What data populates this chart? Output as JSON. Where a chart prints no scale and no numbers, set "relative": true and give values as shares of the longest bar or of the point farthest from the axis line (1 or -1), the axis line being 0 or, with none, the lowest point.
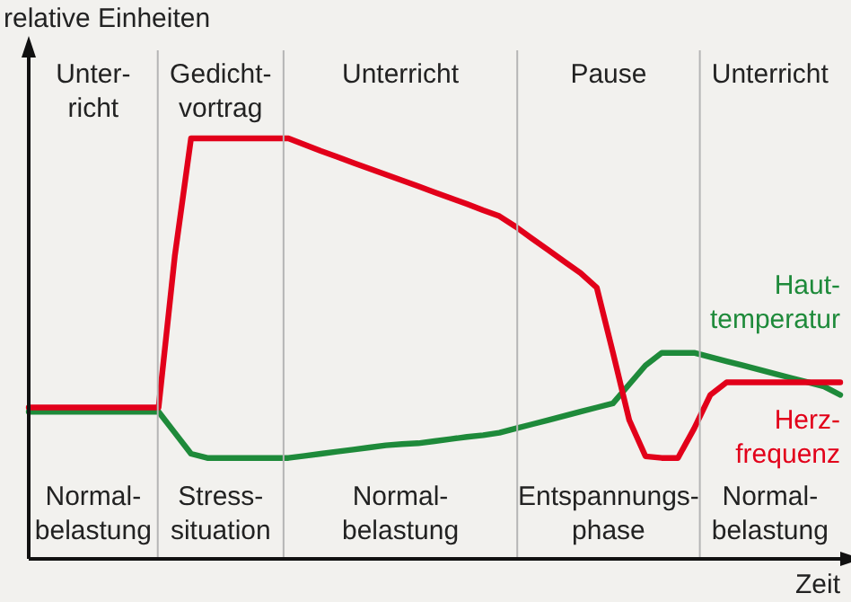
{
  "chart_data": {
    "type": "line",
    "relative": true,
    "ylabel": "relative Einheiten",
    "xlabel": "Zeit",
    "grid": false,
    "legend": false,
    "marker": "none",
    "line_style": "solid",
    "categories": [
      null,
      null,
      null,
      null,
      null,
      null,
      null,
      null,
      null,
      null,
      null,
      null,
      null,
      null,
      null,
      null,
      null,
      null,
      null,
      null,
      null,
      null,
      null,
      null,
      null,
      null,
      null,
      null,
      null,
      null,
      null,
      null,
      null,
      null,
      null,
      null,
      null,
      null,
      null,
      null,
      null,
      null,
      null,
      null,
      null,
      null,
      null,
      null,
      null,
      null,
      null
    ],
    "series": [
      {
        "name": "Herz-\nfrequenz",
        "color": "#e2001a",
        "values": [
          0.36,
          0.36,
          0.36,
          0.36,
          0.36,
          0.36,
          0.36,
          0.36,
          0.36,
          0.72,
          1,
          1,
          1,
          1,
          1,
          1,
          1,
          0.985,
          0.97,
          0.956,
          0.942,
          0.928,
          0.914,
          0.9,
          0.886,
          0.872,
          0.858,
          0.844,
          0.829,
          0.815,
          0.79,
          0.762,
          0.735,
          0.707,
          0.68,
          0.645,
          0.49,
          0.33,
          0.244,
          0.24,
          0.24,
          0.31,
          0.39,
          0.42,
          0.42,
          0.42,
          0.42,
          0.42,
          0.42,
          0.42,
          0.42
        ]
      },
      {
        "name": "Haut-\ntemperatur",
        "color": "#1e8a3a",
        "values": [
          0.35,
          0.35,
          0.35,
          0.35,
          0.35,
          0.35,
          0.35,
          0.35,
          0.35,
          0.3,
          0.25,
          0.24,
          0.24,
          0.24,
          0.24,
          0.24,
          0.24,
          0.245,
          0.25,
          0.255,
          0.26,
          0.265,
          0.27,
          0.273,
          0.275,
          0.28,
          0.285,
          0.29,
          0.294,
          0.3,
          0.31,
          0.32,
          0.33,
          0.34,
          0.35,
          0.36,
          0.37,
          0.415,
          0.46,
          0.49,
          0.49,
          0.49,
          0.48,
          0.47,
          0.46,
          0.45,
          0.44,
          0.43,
          0.42,
          0.41,
          0.39
        ]
      }
    ],
    "annotations": [
      "Unter-\nricht",
      "Gedicht-\nvortrag",
      "Unterricht",
      "Pause",
      "Unterricht",
      "Normal-\nbelastung",
      "Stress-\nsituation",
      "Normal-\nbelastung",
      "Entspannungs-\nphase",
      "Normal-\nbelastung"
    ]
  }
}
